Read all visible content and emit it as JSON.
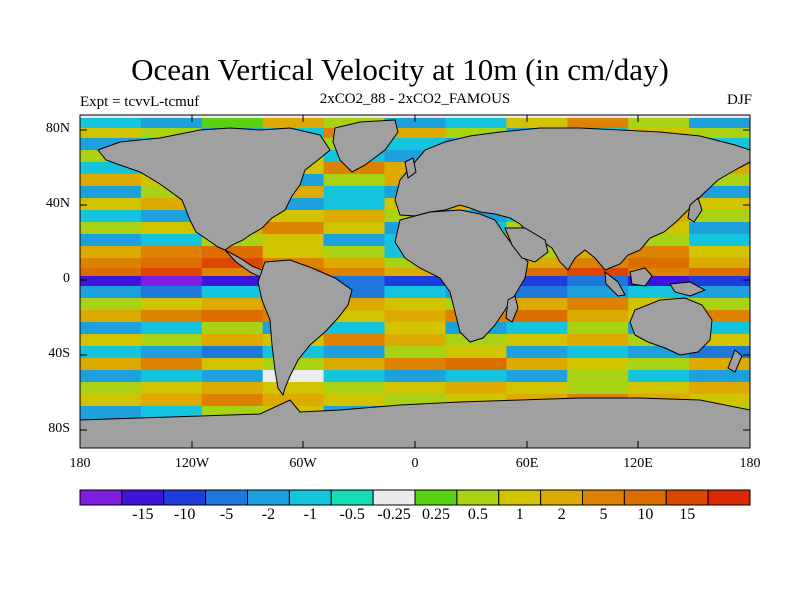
{
  "title": "Ocean Vertical Velocity at 10m (in cm/day)",
  "subtitle_left": "Expt = tcvvL-tcmuf",
  "subtitle_center": "2xCO2_88 - 2xCO2_FAMOUS",
  "subtitle_right": "DJF",
  "axes": {
    "y_ticks": [
      "80N",
      "40N",
      "0",
      "40S",
      "80S"
    ],
    "x_ticks": [
      "180",
      "120W",
      "60W",
      "0",
      "60E",
      "120E",
      "180"
    ]
  },
  "colorbar": {
    "colors": [
      "#7e1ee0",
      "#3c14dc",
      "#1e3cdc",
      "#1e78dc",
      "#1ea0dc",
      "#14c3dc",
      "#14dcb4",
      "#ebebeb",
      "#5ad214",
      "#aad214",
      "#d2c300",
      "#dcaa00",
      "#dc8200",
      "#dc6e00",
      "#dc4600",
      "#dc2800"
    ],
    "labels": [
      "-15",
      "-10",
      "-5",
      "-2",
      "-1",
      "-0.5",
      "-0.25",
      "0.25",
      "0.5",
      "1",
      "2",
      "5",
      "10",
      "15"
    ]
  },
  "colors": {
    "land": "#a0a0a0",
    "ocean_neutral": "#ebebeb"
  }
}
